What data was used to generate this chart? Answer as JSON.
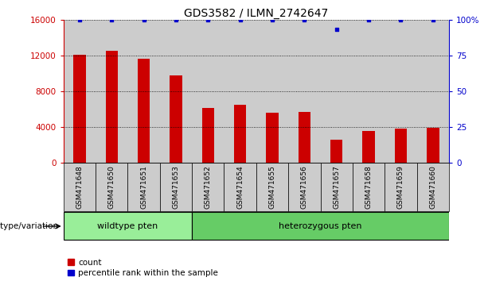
{
  "title": "GDS3582 / ILMN_2742647",
  "samples": [
    "GSM471648",
    "GSM471650",
    "GSM471651",
    "GSM471653",
    "GSM471652",
    "GSM471654",
    "GSM471655",
    "GSM471656",
    "GSM471657",
    "GSM471658",
    "GSM471659",
    "GSM471660"
  ],
  "counts": [
    12100,
    12500,
    11600,
    9800,
    6100,
    6500,
    5600,
    5700,
    2600,
    3600,
    3800,
    3900
  ],
  "percentile_ranks": [
    100,
    100,
    100,
    100,
    100,
    100,
    100,
    100,
    93,
    100,
    100,
    100
  ],
  "bar_color": "#CC0000",
  "dot_color": "#0000CC",
  "ylim_left": [
    0,
    16000
  ],
  "ylim_right": [
    0,
    100
  ],
  "yticks_left": [
    0,
    4000,
    8000,
    12000,
    16000
  ],
  "yticks_right": [
    0,
    25,
    50,
    75,
    100
  ],
  "ytick_labels_right": [
    "0",
    "25",
    "50",
    "75",
    "100%"
  ],
  "wildtype_samples": [
    "GSM471648",
    "GSM471650",
    "GSM471651",
    "GSM471653"
  ],
  "heterozygous_samples": [
    "GSM471652",
    "GSM471654",
    "GSM471655",
    "GSM471656",
    "GSM471657",
    "GSM471658",
    "GSM471659",
    "GSM471660"
  ],
  "wildtype_label": "wildtype pten",
  "heterozygous_label": "heterozygous pten",
  "wildtype_color": "#99EE99",
  "heterozygous_color": "#66CC66",
  "bar_bg_color": "#CCCCCC",
  "genotype_label": "genotype/variation",
  "legend_count_label": "count",
  "legend_percentile_label": "percentile rank within the sample",
  "title_fontsize": 10,
  "tick_fontsize": 7.5
}
